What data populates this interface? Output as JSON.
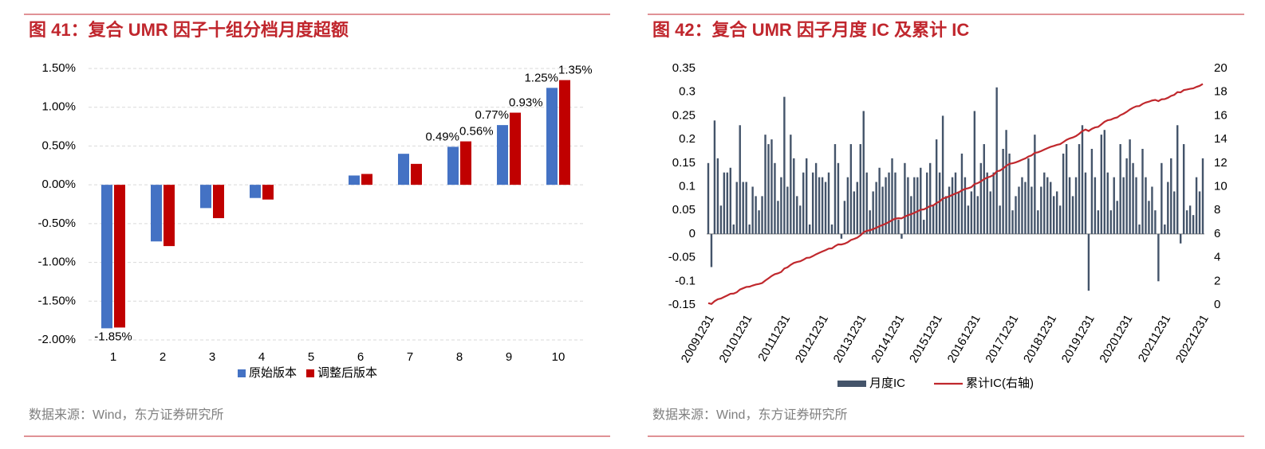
{
  "chart_data": [
    {
      "type": "bar",
      "title": "图 41：复合 UMR 因子十组分档月度超额",
      "source": "数据来源：Wind，东方证券研究所",
      "categories": [
        "1",
        "2",
        "3",
        "4",
        "5",
        "6",
        "7",
        "8",
        "9",
        "10"
      ],
      "series": [
        {
          "name": "原始版本",
          "color": "#4472c4",
          "values": [
            -1.85,
            -0.73,
            -0.3,
            -0.17,
            0,
            0.12,
            0.4,
            0.49,
            0.77,
            1.25
          ],
          "value_labels": [
            "-1.85%",
            null,
            null,
            null,
            null,
            null,
            null,
            "0.49%",
            "0.77%",
            "1.25%"
          ]
        },
        {
          "name": "调整后版本",
          "color": "#c00000",
          "values": [
            -1.84,
            -0.79,
            -0.43,
            -0.19,
            0,
            0.14,
            0.27,
            0.56,
            0.93,
            1.35
          ],
          "value_labels": [
            null,
            null,
            null,
            null,
            null,
            null,
            null,
            "0.56%",
            "0.93%",
            "1.35%"
          ]
        }
      ],
      "ylim": [
        -2,
        1.5
      ],
      "yticks": [
        {
          "value": -2,
          "label": "-2.00%"
        },
        {
          "value": -1.5,
          "label": "-1.50%"
        },
        {
          "value": -1,
          "label": "-1.00%"
        },
        {
          "value": -0.5,
          "label": "-0.50%"
        },
        {
          "value": 0,
          "label": "0.00%"
        },
        {
          "value": 0.5,
          "label": "0.50%"
        },
        {
          "value": 1,
          "label": "1.00%"
        },
        {
          "value": 1.5,
          "label": "1.50%"
        }
      ],
      "grid": true,
      "legend": "bottom"
    },
    {
      "type": "combo",
      "title": "图 42：复合 UMR 因子月度 IC 及累计 IC",
      "source": "数据来源：Wind，东方证券研究所",
      "categories": [
        "20091231",
        null,
        null,
        null,
        null,
        null,
        null,
        null,
        null,
        null,
        null,
        null,
        "20101231",
        null,
        null,
        null,
        null,
        null,
        null,
        null,
        null,
        null,
        null,
        null,
        "20111231",
        null,
        null,
        null,
        null,
        null,
        null,
        null,
        null,
        null,
        null,
        null,
        "20121231",
        null,
        null,
        null,
        null,
        null,
        null,
        null,
        null,
        null,
        null,
        null,
        "20131231",
        null,
        null,
        null,
        null,
        null,
        null,
        null,
        null,
        null,
        null,
        null,
        "20141231",
        null,
        null,
        null,
        null,
        null,
        null,
        null,
        null,
        null,
        null,
        null,
        "20151231",
        null,
        null,
        null,
        null,
        null,
        null,
        null,
        null,
        null,
        null,
        null,
        "20161231",
        null,
        null,
        null,
        null,
        null,
        null,
        null,
        null,
        null,
        null,
        null,
        "20171231",
        null,
        null,
        null,
        null,
        null,
        null,
        null,
        null,
        null,
        null,
        null,
        "20181231",
        null,
        null,
        null,
        null,
        null,
        null,
        null,
        null,
        null,
        null,
        null,
        "20191231",
        null,
        null,
        null,
        null,
        null,
        null,
        null,
        null,
        null,
        null,
        null,
        "20201231",
        null,
        null,
        null,
        null,
        null,
        null,
        null,
        null,
        null,
        null,
        null,
        "20211231",
        null,
        null,
        null,
        null,
        null,
        null,
        null,
        null,
        null,
        null,
        null,
        "20221231"
      ],
      "series": [
        {
          "name": "月度IC",
          "type": "bar",
          "color": "#44546a",
          "values": [
            0.15,
            -0.07,
            0.24,
            0.16,
            0.06,
            0.13,
            0.13,
            0.14,
            0.02,
            0.11,
            0.23,
            0.11,
            0.11,
            0.02,
            0.1,
            0.08,
            0.05,
            0.08,
            0.21,
            0.19,
            0.2,
            0.15,
            0.07,
            0.12,
            0.29,
            0.1,
            0.21,
            0.16,
            0.08,
            0.06,
            0.13,
            0.16,
            0.02,
            0.13,
            0.15,
            0.12,
            0.12,
            0.11,
            0.13,
            0.02,
            0.19,
            0.15,
            -0.01,
            0.07,
            0.12,
            0.19,
            0.09,
            0.11,
            0.19,
            0.26,
            0.13,
            0.05,
            0.09,
            0.11,
            0.14,
            0.1,
            0.12,
            0.13,
            0.16,
            0.13,
            0.03,
            -0.01,
            0.15,
            0.12,
            0.08,
            0.12,
            0.12,
            0.14,
            0.03,
            0.13,
            0.15,
            0.06,
            0.2,
            0.13,
            0.25,
            0.08,
            0.1,
            0.12,
            0.13,
            0.09,
            0.17,
            0.12,
            0.06,
            0.09,
            0.26,
            0.08,
            0.15,
            0.19,
            0.13,
            0.09,
            0.13,
            0.31,
            0.06,
            0.18,
            0.22,
            0.17,
            0.05,
            0.08,
            0.1,
            0.12,
            0.11,
            0.16,
            0.1,
            0.21,
            0.05,
            0.1,
            0.13,
            0.12,
            0.11,
            0.08,
            0.09,
            0.06,
            0.17,
            0.19,
            0.12,
            0.08,
            0.12,
            0.19,
            0.23,
            0.13,
            -0.12,
            0.18,
            0.12,
            0.05,
            0.21,
            0.22,
            0.13,
            0.05,
            0.12,
            0.07,
            0.19,
            0.12,
            0.16,
            0.2,
            0.15,
            0.12,
            0.02,
            0.18,
            0.12,
            0.07,
            0.1,
            0.05,
            -0.1,
            0.15,
            0.02,
            0.11,
            0.16,
            0.09,
            0.23,
            -0.02,
            0.19,
            0.05,
            0.06,
            0.04,
            0.12,
            0.09,
            0.16
          ]
        },
        {
          "name": "累计IC(右轴)",
          "type": "line",
          "color": "#c0282d",
          "axis": "y2",
          "values": [
            0.15,
            0.08,
            0.32,
            0.48,
            0.54,
            0.67,
            0.8,
            0.94,
            0.96,
            1.07,
            1.3,
            1.41,
            1.52,
            1.54,
            1.64,
            1.72,
            1.77,
            1.85,
            2.06,
            2.25,
            2.45,
            2.6,
            2.67,
            2.79,
            3.08,
            3.18,
            3.39,
            3.55,
            3.63,
            3.69,
            3.82,
            3.98,
            4.0,
            4.13,
            4.28,
            4.4,
            4.52,
            4.63,
            4.76,
            4.78,
            4.97,
            5.12,
            5.11,
            5.18,
            5.3,
            5.49,
            5.58,
            5.69,
            5.88,
            6.14,
            6.27,
            6.32,
            6.41,
            6.52,
            6.66,
            6.76,
            6.88,
            7.01,
            7.17,
            7.3,
            7.33,
            7.32,
            7.47,
            7.59,
            7.67,
            7.79,
            7.91,
            8.05,
            8.08,
            8.21,
            8.36,
            8.42,
            8.62,
            8.75,
            9.0,
            9.08,
            9.18,
            9.3,
            9.43,
            9.52,
            9.69,
            9.81,
            9.87,
            9.96,
            10.22,
            10.3,
            10.45,
            10.64,
            10.77,
            10.86,
            10.99,
            11.3,
            11.36,
            11.54,
            11.76,
            11.93,
            11.98,
            12.06,
            12.16,
            12.28,
            12.39,
            12.55,
            12.65,
            12.86,
            12.91,
            13.01,
            13.14,
            13.26,
            13.37,
            13.45,
            13.54,
            13.6,
            13.77,
            13.96,
            14.08,
            14.16,
            14.28,
            14.47,
            14.7,
            14.83,
            14.71,
            14.89,
            15.01,
            15.06,
            15.27,
            15.49,
            15.62,
            15.67,
            15.79,
            15.86,
            16.05,
            16.17,
            16.33,
            16.53,
            16.68,
            16.8,
            16.82,
            17.0,
            17.12,
            17.19,
            17.29,
            17.34,
            17.24,
            17.39,
            17.41,
            17.52,
            17.68,
            17.77,
            18.0,
            17.98,
            18.17,
            18.22,
            18.28,
            18.32,
            18.44,
            18.53,
            18.69
          ]
        }
      ],
      "ylim": [
        -0.15,
        0.35
      ],
      "yticks": [
        -0.15,
        -0.1,
        -0.05,
        0,
        0.05,
        0.1,
        0.15,
        0.2,
        0.25,
        0.3,
        0.35
      ],
      "y2lim": [
        0,
        20
      ],
      "y2ticks": [
        0,
        2,
        4,
        6,
        8,
        10,
        12,
        14,
        16,
        18,
        20
      ],
      "grid": false,
      "legend": "bottom"
    }
  ]
}
